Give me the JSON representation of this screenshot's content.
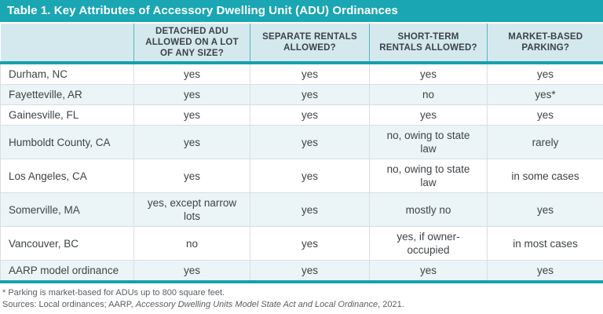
{
  "title": "Table 1. Key Attributes of Accessory Dwelling Unit (ADU) Ordinances",
  "chart_data": {
    "type": "table",
    "title": "Table 1. Key Attributes of Accessory Dwelling Unit (ADU) Ordinances",
    "columns": [
      "",
      "DETACHED ADU ALLOWED ON A LOT OF ANY SIZE?",
      "SEPARATE RENTALS ALLOWED?",
      "SHORT-TERM RENTALS ALLOWED?",
      "MARKET-BASED PARKING?"
    ],
    "rows": [
      {
        "label": "Durham, NC",
        "values": [
          "yes",
          "yes",
          "yes",
          "yes"
        ]
      },
      {
        "label": "Fayetteville, AR",
        "values": [
          "yes",
          "yes",
          "no",
          "yes*"
        ]
      },
      {
        "label": "Gainesville, FL",
        "values": [
          "yes",
          "yes",
          "yes",
          "yes"
        ]
      },
      {
        "label": "Humboldt County, CA",
        "values": [
          "yes",
          "yes",
          "no, owing to state law",
          "rarely"
        ]
      },
      {
        "label": "Los Angeles, CA",
        "values": [
          "yes",
          "yes",
          "no, owing to state law",
          "in some cases"
        ]
      },
      {
        "label": "Somerville, MA",
        "values": [
          "yes, except narrow lots",
          "yes",
          "mostly no",
          "yes"
        ]
      },
      {
        "label": "Vancouver, BC",
        "values": [
          "no",
          "yes",
          "yes, if owner-occupied",
          "in most cases"
        ]
      },
      {
        "label": "AARP model ordinance",
        "values": [
          "yes",
          "yes",
          "yes",
          "yes"
        ]
      }
    ]
  },
  "footnotes": {
    "asterisk": "* Parking is market-based for ADUs up to 800 square feet.",
    "sources_prefix": "Sources: Local ordinances; AARP, ",
    "sources_italic": "Accessory Dwelling Units Model State Act and Local Ordinance",
    "sources_suffix": ", 2021."
  },
  "colors": {
    "teal_bar": "#1aa6b3",
    "teal_divider": "#189fae",
    "header_bg": "#d4e9ee",
    "header_divider": "#4fb7c4",
    "row_alt_bg": "#ebf4f6",
    "row_bg": "#ffffff",
    "grid_line": "#d9dee1",
    "title_text": "#ffffff",
    "header_text": "#3c4247",
    "body_text": "#3f4448",
    "footnote_text": "#595e62"
  }
}
